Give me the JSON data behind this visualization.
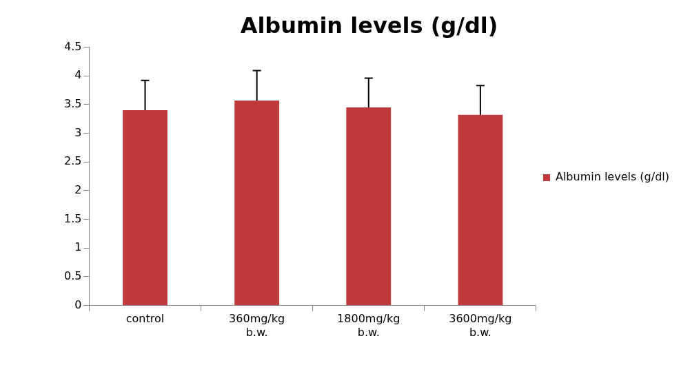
{
  "chart_data": {
    "type": "bar",
    "title": "Albumin levels (g/dl)",
    "categories": [
      "control",
      "360mg/kg b.w.",
      "1800mg/kg b.w.",
      "3600mg/kg b.w."
    ],
    "series": [
      {
        "name": "Albumin levels (g/dl)",
        "color": "#c0393b",
        "values": [
          3.4,
          3.57,
          3.45,
          3.32
        ],
        "errors": [
          [
            3.4,
            3.92
          ],
          [
            3.57,
            4.09
          ],
          [
            3.45,
            3.96
          ],
          [
            3.32,
            3.83
          ]
        ]
      }
    ],
    "ylim": [
      0,
      4.5
    ],
    "yticks": [
      0,
      0.5,
      1,
      1.5,
      2,
      2.5,
      3,
      3.5,
      4,
      4.5
    ],
    "grid": false,
    "legend": "right"
  }
}
